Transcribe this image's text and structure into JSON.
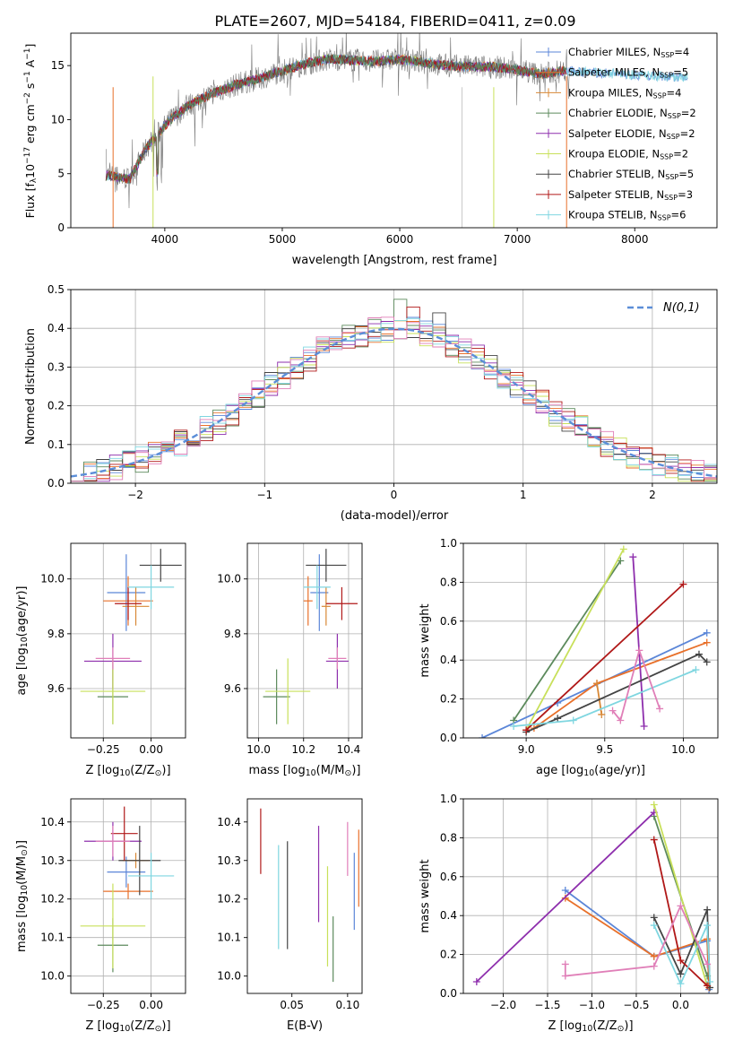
{
  "figure_title": "PLATE=2607, MJD=54184, FIBERID=0411, z=0.09",
  "colors": {
    "chabrier_miles": "#5b86d8",
    "salpeter_miles": "#e8702a",
    "kroupa_miles": "#d88836",
    "chabrier_elodie": "#5c8a5c",
    "salpeter_elodie": "#8e2fad",
    "kroupa_elodie": "#c8e05a",
    "chabrier_stelib": "#444444",
    "salpeter_stelib": "#b01818",
    "kroupa_stelib": "#7fd6e0",
    "pink": "#e07fb8",
    "normal_curve": "#5b8ed8",
    "grid": "#b0b0b0"
  },
  "chart_data": [
    {
      "type": "line",
      "title": "PLATE=2607, MJD=54184, FIBERID=0411, z=0.09",
      "xlabel": "wavelength [Angstrom, rest frame]",
      "ylabel": "Flux [fλ10⁻¹⁷ erg cm⁻² s⁻¹ A⁻¹]",
      "xlim": [
        3200,
        8700
      ],
      "ylim": [
        0,
        18
      ],
      "xticks": [
        4000,
        5000,
        6000,
        7000,
        8000
      ],
      "yticks": [
        0,
        5,
        10,
        15
      ],
      "grid": false,
      "legend_position": "right",
      "legend": [
        "Chabrier MILES, N_SSP=4",
        "Salpeter MILES, N_SSP=5",
        "Kroupa MILES, N_SSP=4",
        "Chabrier ELODIE, N_SSP=2",
        "Salpeter ELODIE, N_SSP=2",
        "Kroupa ELODIE, N_SSP=2",
        "Chabrier STELIB, N_SSP=5",
        "Salpeter STELIB, N_SSP=3",
        "Kroupa STELIB, N_SSP=6"
      ],
      "legend_display": [
        {
          "pre": "Chabrier MILES, N",
          "sub": "SSP",
          "post": "=4"
        },
        {
          "pre": "Salpeter MILES, N",
          "sub": "SSP",
          "post": "=5"
        },
        {
          "pre": "Kroupa MILES, N",
          "sub": "SSP",
          "post": "=4"
        },
        {
          "pre": "Chabrier ELODIE, N",
          "sub": "SSP",
          "post": "=2"
        },
        {
          "pre": "Salpeter ELODIE, N",
          "sub": "SSP",
          "post": "=2"
        },
        {
          "pre": "Kroupa ELODIE, N",
          "sub": "SSP",
          "post": "=2"
        },
        {
          "pre": "Chabrier STELIB, N",
          "sub": "SSP",
          "post": "=5"
        },
        {
          "pre": "Salpeter STELIB, N",
          "sub": "SSP",
          "post": "=3"
        },
        {
          "pre": "Kroupa STELIB, N",
          "sub": "SSP",
          "post": "=6"
        }
      ],
      "legend_colors": [
        "#5b86d8",
        "#e8702a",
        "#d88836",
        "#5c8a5c",
        "#8e2fad",
        "#c8e05a",
        "#444444",
        "#b01818",
        "#7fd6e0"
      ],
      "data_curve": {
        "x": [
          3550,
          3700,
          3850,
          3950,
          4050,
          4200,
          4400,
          4600,
          4800,
          5000,
          5200,
          5400,
          5600,
          5800,
          6000,
          6200,
          6400,
          6600,
          6800,
          7000,
          7200,
          7400
        ],
        "y": [
          4.8,
          4.5,
          7.5,
          8.8,
          10.0,
          11.3,
          12.4,
          13.2,
          13.8,
          14.5,
          15.2,
          15.6,
          15.5,
          15.4,
          15.6,
          15.3,
          15.0,
          14.9,
          14.9,
          14.6,
          14.2,
          14.5
        ]
      },
      "data_curve_extent": [
        3500,
        7450
      ],
      "model_curve_extent": [
        3500,
        8450
      ]
    },
    {
      "type": "bar",
      "style": "step-histogram",
      "xlabel": "(data-model)/error",
      "ylabel": "Normed distribution",
      "xlim": [
        -2.5,
        2.5
      ],
      "ylim": [
        0,
        0.5
      ],
      "xticks": [
        -2,
        -1,
        0,
        1,
        2
      ],
      "yticks": [
        0.0,
        0.1,
        0.2,
        0.3,
        0.4,
        0.5
      ],
      "grid": true,
      "legend_position": "top-right",
      "legend": [
        "N(0,1)"
      ],
      "bin_width": 0.1,
      "peak_bins": {
        "x": [
          0.0,
          0.1,
          0.3
        ],
        "y": [
          0.475,
          0.455,
          0.44
        ]
      }
    },
    {
      "type": "scatter",
      "style": "errorbar",
      "xlabel": "Z [log10(Z/Z⊙)]",
      "ylabel": "age  [log10(age/yr)]",
      "xlim": [
        -0.42,
        0.18
      ],
      "ylim": [
        9.42,
        10.13
      ],
      "xticks": [
        -0.25,
        0.0
      ],
      "yticks": [
        9.6,
        9.8,
        10.0
      ],
      "grid": true,
      "points": [
        {
          "series": "Chabrier MILES",
          "x": -0.13,
          "xerr": 0.1,
          "y": 9.95,
          "yerr": 0.14
        },
        {
          "series": "Salpeter MILES",
          "x": -0.12,
          "xerr": 0.13,
          "y": 9.92,
          "yerr": 0.09
        },
        {
          "series": "Kroupa MILES",
          "x": -0.08,
          "xerr": 0.07,
          "y": 9.9,
          "yerr": 0.07
        },
        {
          "series": "Chabrier ELODIE",
          "x": -0.2,
          "xerr": 0.08,
          "y": 9.57,
          "yerr": 0.1
        },
        {
          "series": "Salpeter ELODIE",
          "x": -0.2,
          "xerr": 0.15,
          "y": 9.7,
          "yerr": 0.1
        },
        {
          "series": "Kroupa ELODIE",
          "x": -0.2,
          "xerr": 0.17,
          "y": 9.59,
          "yerr": 0.12
        },
        {
          "series": "Chabrier STELIB",
          "x": 0.05,
          "xerr": 0.11,
          "y": 10.05,
          "yerr": 0.06
        },
        {
          "series": "Salpeter STELIB",
          "x": -0.12,
          "xerr": 0.07,
          "y": 9.91,
          "yerr": 0.06
        },
        {
          "series": "Kroupa STELIB",
          "x": 0.0,
          "xerr": 0.12,
          "y": 9.97,
          "yerr": 0.08
        },
        {
          "series": "pink",
          "x": -0.2,
          "xerr": 0.09,
          "y": 9.71,
          "yerr": 0.04
        }
      ]
    },
    {
      "type": "scatter",
      "style": "errorbar",
      "xlabel": "mass [log10(M/M⊙)]",
      "ylabel": "",
      "xlim": [
        9.95,
        10.46
      ],
      "ylim": [
        9.42,
        10.13
      ],
      "xticks": [
        10.0,
        10.2,
        10.4
      ],
      "yticks": [
        9.6,
        9.8,
        10.0
      ],
      "grid": true,
      "points": [
        {
          "series": "Chabrier MILES",
          "x": 10.27,
          "xerr": 0.04,
          "y": 9.95,
          "yerr": 0.14
        },
        {
          "series": "Salpeter MILES",
          "x": 10.22,
          "xerr": 0.02,
          "y": 9.92,
          "yerr": 0.09
        },
        {
          "series": "Kroupa MILES",
          "x": 10.3,
          "xerr": 0.02,
          "y": 9.9,
          "yerr": 0.07
        },
        {
          "series": "Chabrier ELODIE",
          "x": 10.08,
          "xerr": 0.06,
          "y": 9.57,
          "yerr": 0.1
        },
        {
          "series": "Salpeter ELODIE",
          "x": 10.35,
          "xerr": 0.05,
          "y": 9.7,
          "yerr": 0.1
        },
        {
          "series": "Kroupa ELODIE",
          "x": 10.13,
          "xerr": 0.1,
          "y": 9.59,
          "yerr": 0.12
        },
        {
          "series": "Chabrier STELIB",
          "x": 10.3,
          "xerr": 0.09,
          "y": 10.05,
          "yerr": 0.06
        },
        {
          "series": "Salpeter STELIB",
          "x": 10.37,
          "xerr": 0.07,
          "y": 9.91,
          "yerr": 0.06
        },
        {
          "series": "Kroupa STELIB",
          "x": 10.26,
          "xerr": 0.06,
          "y": 9.97,
          "yerr": 0.08
        },
        {
          "series": "pink",
          "x": 10.35,
          "xerr": 0.04,
          "y": 9.71,
          "yerr": 0.04
        }
      ]
    },
    {
      "type": "line",
      "xlabel": "age  [log10(age/yr)]",
      "ylabel": "mass weight",
      "xlim": [
        8.6,
        10.22
      ],
      "ylim": [
        0,
        1
      ],
      "xticks": [
        9.0,
        9.5,
        10.0
      ],
      "yticks": [
        0.0,
        0.2,
        0.4,
        0.6,
        0.8,
        1.0
      ],
      "grid": true,
      "series": [
        {
          "name": "Chabrier MILES",
          "x": [
            8.72,
            9.2,
            10.15
          ],
          "y": [
            0.0,
            0.18,
            0.54
          ]
        },
        {
          "name": "Salpeter MILES",
          "x": [
            9.05,
            9.45,
            10.15
          ],
          "y": [
            0.05,
            0.28,
            0.49
          ]
        },
        {
          "name": "Kroupa MILES",
          "x": [
            9.45,
            9.48
          ],
          "y": [
            0.28,
            0.12
          ]
        },
        {
          "name": "Chabrier ELODIE",
          "x": [
            8.92,
            9.6
          ],
          "y": [
            0.09,
            0.91
          ]
        },
        {
          "name": "Salpeter ELODIE",
          "x": [
            9.68,
            9.75
          ],
          "y": [
            0.93,
            0.06
          ]
        },
        {
          "name": "Kroupa ELODIE",
          "x": [
            9.0,
            9.62
          ],
          "y": [
            0.04,
            0.97
          ]
        },
        {
          "name": "Chabrier STELIB",
          "x": [
            9.0,
            9.2,
            10.1,
            10.15
          ],
          "y": [
            0.03,
            0.1,
            0.43,
            0.39
          ]
        },
        {
          "name": "Salpeter STELIB",
          "x": [
            9.0,
            10.0
          ],
          "y": [
            0.04,
            0.79
          ]
        },
        {
          "name": "Kroupa STELIB",
          "x": [
            8.92,
            9.3,
            10.08
          ],
          "y": [
            0.06,
            0.09,
            0.35
          ]
        },
        {
          "name": "pink",
          "x": [
            9.55,
            9.6,
            9.72,
            9.85
          ],
          "y": [
            0.14,
            0.09,
            0.45,
            0.15
          ]
        }
      ]
    },
    {
      "type": "scatter",
      "style": "errorbar",
      "xlabel": "Z [log10(Z/Z⊙)]",
      "ylabel": "mass [log10(M/M⊙)]",
      "xlim": [
        -0.42,
        0.18
      ],
      "ylim": [
        9.955,
        10.46
      ],
      "xticks": [
        -0.25,
        0.0
      ],
      "yticks": [
        10.0,
        10.1,
        10.2,
        10.3,
        10.4
      ],
      "grid": true,
      "points": [
        {
          "series": "Chabrier MILES",
          "x": -0.13,
          "xerr": 0.1,
          "y": 10.27,
          "yerr": 0.04
        },
        {
          "series": "Salpeter MILES",
          "x": -0.12,
          "xerr": 0.13,
          "y": 10.22,
          "yerr": 0.02
        },
        {
          "series": "Kroupa MILES",
          "x": -0.08,
          "xerr": 0.07,
          "y": 10.3,
          "yerr": 0.02
        },
        {
          "series": "Chabrier ELODIE",
          "x": -0.2,
          "xerr": 0.08,
          "y": 10.08,
          "yerr": 0.07
        },
        {
          "series": "Salpeter ELODIE",
          "x": -0.2,
          "xerr": 0.15,
          "y": 10.35,
          "yerr": 0.05
        },
        {
          "series": "Kroupa ELODIE",
          "x": -0.2,
          "xerr": 0.17,
          "y": 10.13,
          "yerr": 0.11
        },
        {
          "series": "Chabrier STELIB",
          "x": -0.06,
          "xerr": 0.11,
          "y": 10.3,
          "yerr": 0.09
        },
        {
          "series": "Salpeter STELIB",
          "x": -0.14,
          "xerr": 0.07,
          "y": 10.37,
          "yerr": 0.07
        },
        {
          "series": "Kroupa STELIB",
          "x": 0.0,
          "xerr": 0.12,
          "y": 10.26,
          "yerr": 0.06
        },
        {
          "series": "pink",
          "x": -0.2,
          "xerr": 0.09,
          "y": 10.35,
          "yerr": 0.04
        }
      ]
    },
    {
      "type": "scatter",
      "style": "errorbar",
      "xlabel": "E(B-V)",
      "ylabel": "",
      "xlim": [
        0.01,
        0.113
      ],
      "ylim": [
        9.955,
        10.46
      ],
      "xticks": [
        0.05,
        0.1
      ],
      "yticks": [
        10.0,
        10.1,
        10.2,
        10.3,
        10.4
      ],
      "grid": false,
      "points": [
        {
          "series": "Salpeter STELIB",
          "x": 0.022,
          "y": 10.35,
          "yerr": 0.085
        },
        {
          "series": "Kroupa STELIB",
          "x": 0.038,
          "y": 10.205,
          "yerr": 0.135
        },
        {
          "series": "Chabrier STELIB",
          "x": 0.046,
          "y": 10.21,
          "yerr": 0.14
        },
        {
          "series": "Salpeter ELODIE",
          "x": 0.074,
          "y": 10.265,
          "yerr": 0.125
        },
        {
          "series": "Kroupa ELODIE",
          "x": 0.082,
          "y": 10.155,
          "yerr": 0.13
        },
        {
          "series": "Chabrier ELODIE",
          "x": 0.087,
          "y": 10.07,
          "yerr": 0.085
        },
        {
          "series": "pink",
          "x": 0.1,
          "y": 10.33,
          "yerr": 0.07
        },
        {
          "series": "Chabrier MILES",
          "x": 0.106,
          "y": 10.22,
          "yerr": 0.1
        },
        {
          "series": "Salpeter MILES",
          "x": 0.11,
          "y": 10.28,
          "yerr": 0.1
        }
      ]
    },
    {
      "type": "line",
      "xlabel": "Z [log10(Z/Z⊙)]",
      "ylabel": "mass weight",
      "xlim": [
        -2.45,
        0.42
      ],
      "ylim": [
        0,
        1
      ],
      "xticks": [
        -2.0,
        -1.5,
        -1.0,
        -0.5,
        0.0
      ],
      "yticks": [
        0.0,
        0.2,
        0.4,
        0.6,
        0.8,
        1.0
      ],
      "grid": true,
      "series": [
        {
          "name": "Chabrier MILES",
          "x": [
            -1.3,
            -0.3,
            0.3,
            0.32
          ],
          "y": [
            0.53,
            0.19,
            0.27,
            0.02
          ]
        },
        {
          "name": "Salpeter MILES",
          "x": [
            -1.3,
            -0.3,
            0.3,
            0.32
          ],
          "y": [
            0.49,
            0.19,
            0.28,
            0.03
          ]
        },
        {
          "name": "Chabrier ELODIE",
          "x": [
            -0.3,
            0.3
          ],
          "y": [
            0.91,
            0.09
          ]
        },
        {
          "name": "Salpeter ELODIE",
          "x": [
            -2.3,
            -0.3
          ],
          "y": [
            0.06,
            0.93
          ]
        },
        {
          "name": "Kroupa ELODIE",
          "x": [
            -0.3,
            0.3
          ],
          "y": [
            0.97,
            0.04
          ]
        },
        {
          "name": "Chabrier STELIB",
          "x": [
            -0.3,
            0.0,
            0.3,
            0.33
          ],
          "y": [
            0.39,
            0.1,
            0.43,
            0.03
          ]
        },
        {
          "name": "Salpeter STELIB",
          "x": [
            -0.3,
            0.0,
            0.3
          ],
          "y": [
            0.79,
            0.17,
            0.04
          ]
        },
        {
          "name": "Kroupa STELIB",
          "x": [
            -0.3,
            0.0,
            0.3,
            0.33
          ],
          "y": [
            0.35,
            0.05,
            0.35,
            0.06
          ]
        },
        {
          "name": "pink",
          "x": [
            -1.3,
            -1.3,
            -0.3,
            0.0,
            0.3
          ],
          "y": [
            0.15,
            0.09,
            0.14,
            0.45,
            0.15
          ]
        }
      ]
    }
  ]
}
